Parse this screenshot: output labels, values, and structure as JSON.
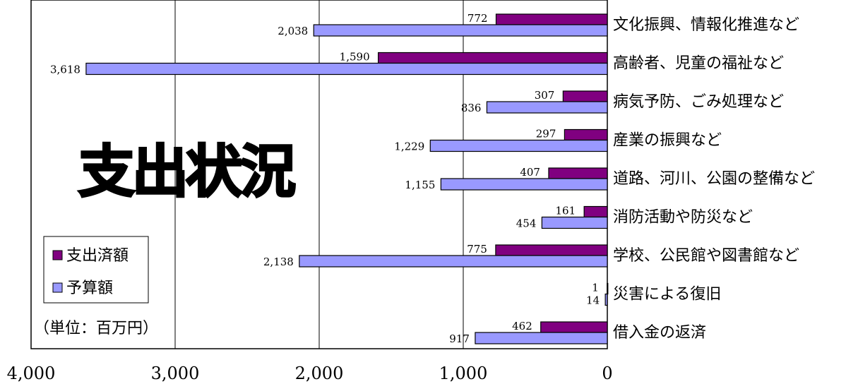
{
  "chart_data": {
    "type": "bar",
    "orientation": "horizontal",
    "x_direction": "reversed",
    "title": "支出状況",
    "unit_note": "（単位：百万円）",
    "xlim": [
      0,
      4000
    ],
    "x_ticks": [
      {
        "value": 4000,
        "label": "4,000"
      },
      {
        "value": 3000,
        "label": "3,000"
      },
      {
        "value": 2000,
        "label": "2,000"
      },
      {
        "value": 1000,
        "label": "1,000"
      },
      {
        "value": 0,
        "label": "0"
      }
    ],
    "grid": "vertical-major",
    "legend_position": "bottom-left",
    "categories": [
      "文化振興、情報化推進など",
      "高齢者、児童の福祉など",
      "病気予防、ごみ処理など",
      "産業の振興など",
      "道路、河川、公園の整備など",
      "消防活動や防災など",
      "学校、公民館や図書館など",
      "災害による復旧",
      "借入金の返済"
    ],
    "series": [
      {
        "name": "支出済額",
        "color": "#800080",
        "values": [
          772,
          1590,
          307,
          297,
          407,
          161,
          775,
          1,
          462
        ],
        "labels": [
          "772",
          "1,590",
          "307",
          "297",
          "407",
          "161",
          "775",
          "1",
          "462"
        ]
      },
      {
        "name": "予算額",
        "color": "#9999FF",
        "values": [
          2038,
          3618,
          836,
          1229,
          1155,
          454,
          2138,
          14,
          917
        ],
        "labels": [
          "2,038",
          "3,618",
          "836",
          "1,229",
          "1,155",
          "454",
          "2,138",
          "14",
          "917"
        ]
      }
    ]
  }
}
